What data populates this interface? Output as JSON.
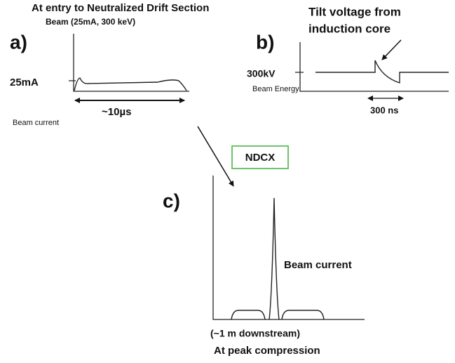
{
  "header": {
    "title": "At entry to Neutralized Drift Section"
  },
  "panels": [
    {
      "label": "a)",
      "subtitle": "Beam (25mA, 300 keV)",
      "y_label": "25mA",
      "span": "~10µs",
      "caption": "Beam current"
    },
    {
      "label": "b)",
      "annotation": [
        "Tilt voltage from",
        "induction core"
      ],
      "y_label": "300kV",
      "axis_caption": "Beam Energy",
      "span": "300 ns"
    },
    {
      "label": "c)",
      "annotation": "Beam current",
      "caption": [
        "(~1 m downstream)",
        "At peak compression"
      ]
    }
  ],
  "arrow_label": "NDCX"
}
